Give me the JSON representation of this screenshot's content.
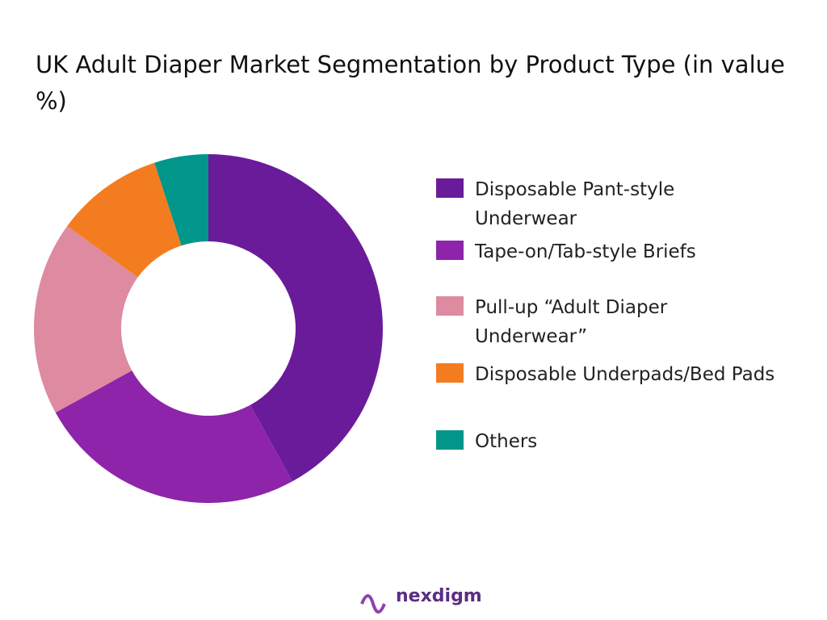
{
  "chart_data": {
    "type": "donut",
    "title": "UK Adult Diaper Market Segmentation by Product Type (in value %)",
    "categories": [
      "Disposable Pant-style Underwear",
      "Tape-on/Tab-style Briefs",
      "Pull-up “Adult Diaper Underwear”",
      "Disposable Underpads/Bed Pads",
      "Others"
    ],
    "values": [
      42,
      25,
      18,
      10,
      5
    ],
    "colors": [
      "#6a1b9a",
      "#8e24aa",
      "#de8aa0",
      "#f47c20",
      "#00968a"
    ],
    "legend": "right"
  },
  "brand": "nexdigm"
}
